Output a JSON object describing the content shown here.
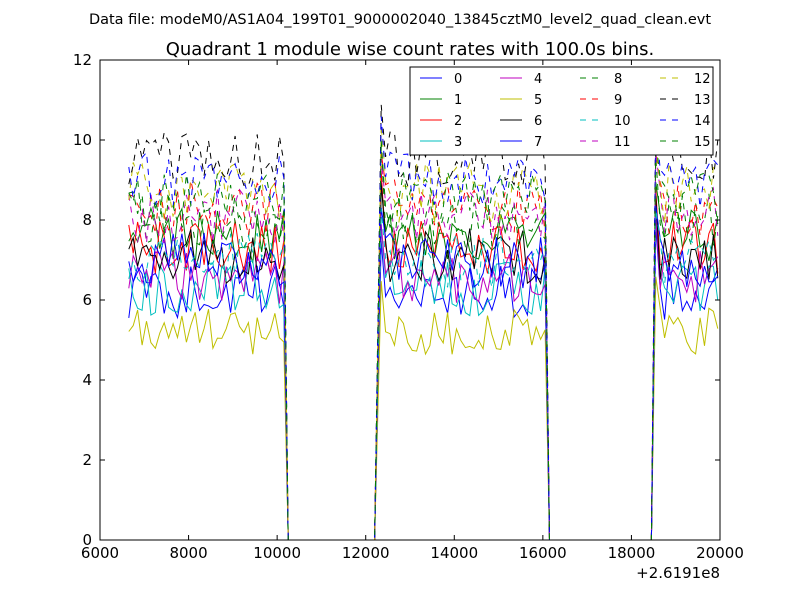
{
  "suptitle": "Data file: modeM0/AS1A04_199T01_9000002040_13845cztM0_level2_quad_clean.evt",
  "chart_data": {
    "type": "line",
    "title": "Quadrant 1 module wise count rates with 100.0s bins.",
    "xlabel": "",
    "ylabel": "",
    "xlim": [
      6000,
      20000
    ],
    "ylim": [
      0,
      12
    ],
    "x_offset_label": "+2.6191e8",
    "xticks": [
      "6000",
      "8000",
      "10000",
      "12000",
      "14000",
      "16000",
      "18000",
      "20000"
    ],
    "yticks": [
      "0",
      "2",
      "4",
      "6",
      "8",
      "10",
      "12"
    ],
    "grid": false,
    "legend_position": "top-right",
    "segments": [
      {
        "x_start": 6650,
        "x_end": 10150,
        "status": "on"
      },
      {
        "x_start": 10250,
        "x_end": 12200,
        "status": "off"
      },
      {
        "x_start": 12350,
        "x_end": 16050,
        "status": "on"
      },
      {
        "x_start": 16150,
        "x_end": 18450,
        "status": "off"
      },
      {
        "x_start": 18550,
        "x_end": 20000,
        "status": "on"
      }
    ],
    "series": [
      {
        "name": "0",
        "color": "#0000ff",
        "style": "solid",
        "mean_rate": 6.2,
        "noise": 0.35
      },
      {
        "name": "1",
        "color": "#008000",
        "style": "solid",
        "mean_rate": 7.6,
        "noise": 0.35
      },
      {
        "name": "2",
        "color": "#ff0000",
        "style": "solid",
        "mean_rate": 7.3,
        "noise": 0.35
      },
      {
        "name": "3",
        "color": "#00bfbf",
        "style": "solid",
        "mean_rate": 6.3,
        "noise": 0.35
      },
      {
        "name": "4",
        "color": "#bf00bf",
        "style": "solid",
        "mean_rate": 6.6,
        "noise": 0.35
      },
      {
        "name": "5",
        "color": "#bfbf00",
        "style": "solid",
        "mean_rate": 5.2,
        "noise": 0.3
      },
      {
        "name": "6",
        "color": "#000000",
        "style": "solid",
        "mean_rate": 7.1,
        "noise": 0.35
      },
      {
        "name": "7",
        "color": "#0000ff",
        "style": "solid",
        "mean_rate": 7.0,
        "noise": 0.35
      },
      {
        "name": "8",
        "color": "#008000",
        "style": "dashed",
        "mean_rate": 8.0,
        "noise": 0.35
      },
      {
        "name": "9",
        "color": "#ff0000",
        "style": "dashed",
        "mean_rate": 8.3,
        "noise": 0.35
      },
      {
        "name": "10",
        "color": "#00bfbf",
        "style": "dashed",
        "mean_rate": 7.0,
        "noise": 0.35
      },
      {
        "name": "11",
        "color": "#bf00bf",
        "style": "dashed",
        "mean_rate": 8.1,
        "noise": 0.35
      },
      {
        "name": "12",
        "color": "#bfbf00",
        "style": "dashed",
        "mean_rate": 8.7,
        "noise": 0.4
      },
      {
        "name": "13",
        "color": "#000000",
        "style": "dashed",
        "mean_rate": 9.5,
        "noise": 0.35
      },
      {
        "name": "14",
        "color": "#0000ff",
        "style": "dashed",
        "mean_rate": 9.0,
        "noise": 0.35
      },
      {
        "name": "15",
        "color": "#008000",
        "style": "dashed",
        "mean_rate": 8.5,
        "noise": 0.35
      }
    ]
  }
}
